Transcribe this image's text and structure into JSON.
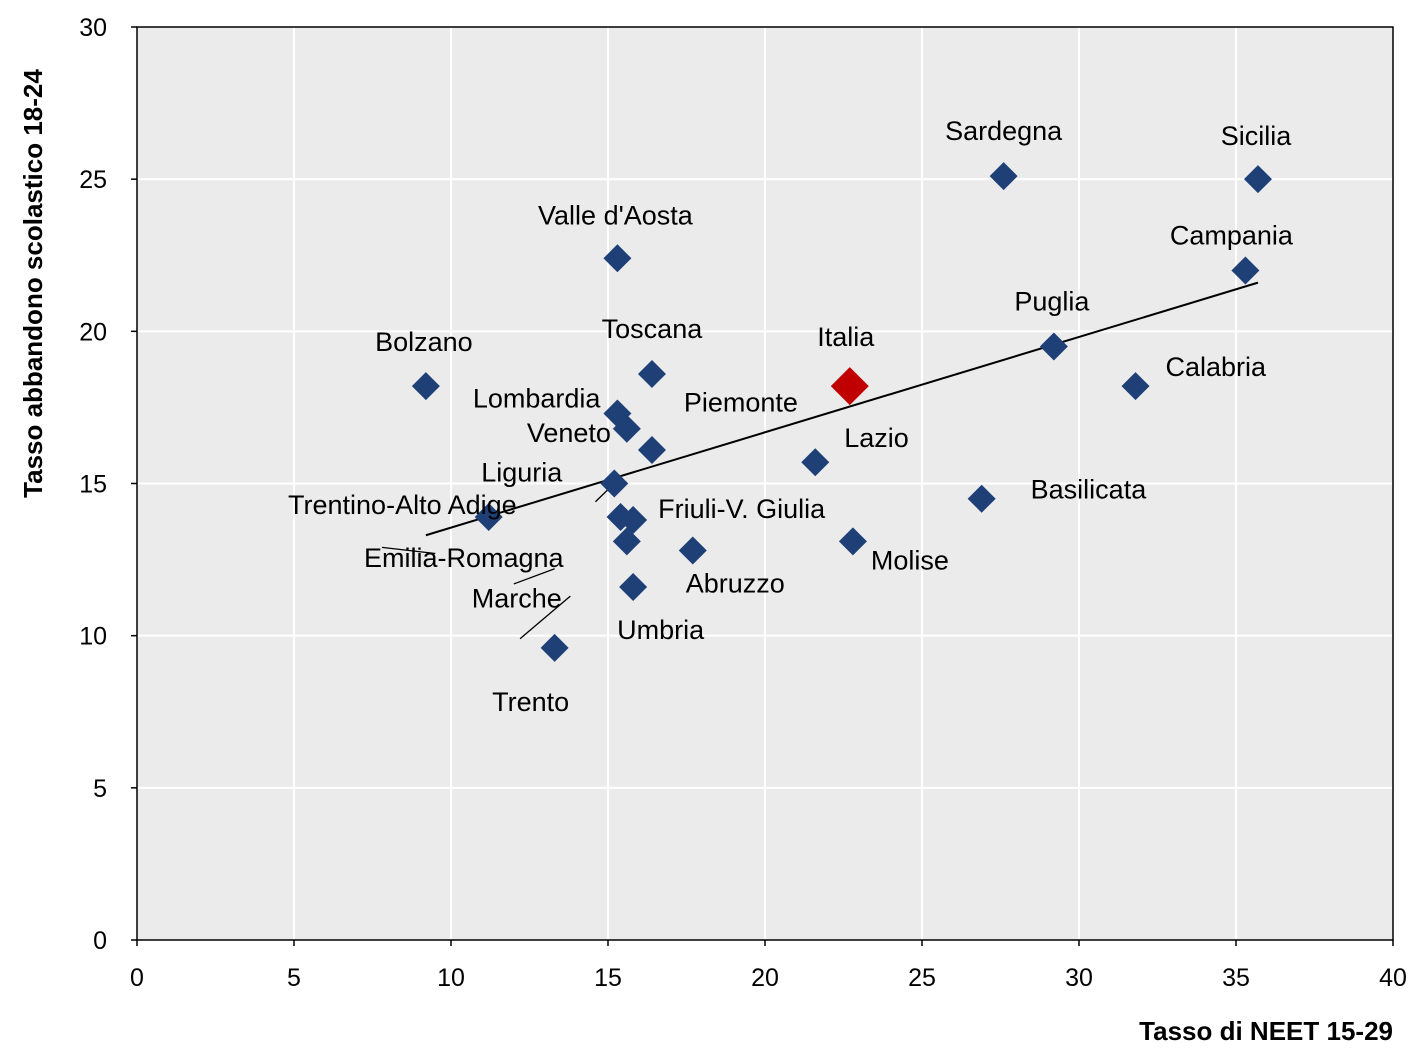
{
  "chart_data": {
    "type": "scatter",
    "title": "",
    "xlabel": "Tasso di NEET 15-29",
    "ylabel": "Tasso abbandono scolastico 18-24",
    "xlim": [
      0,
      40
    ],
    "ylim": [
      0,
      30
    ],
    "xticks": [
      "0",
      "5",
      "10",
      "15",
      "20",
      "25",
      "30",
      "35",
      "40"
    ],
    "yticks": [
      "0",
      "5",
      "10",
      "15",
      "20",
      "25",
      "30"
    ],
    "grid": "horizontal and vertical",
    "colors": {
      "regions": "#1f3f77",
      "highlight": "#c00000",
      "plot_bg": "#ebebeb",
      "trend": "#000000"
    },
    "points": [
      {
        "label": "Sicilia",
        "x": 35.7,
        "y": 25.0
      },
      {
        "label": "Sardegna",
        "x": 27.6,
        "y": 25.1
      },
      {
        "label": "Campania",
        "x": 35.3,
        "y": 22.0
      },
      {
        "label": "Valle d'Aosta",
        "x": 15.3,
        "y": 22.4
      },
      {
        "label": "Puglia",
        "x": 29.2,
        "y": 19.5
      },
      {
        "label": "Calabria",
        "x": 31.8,
        "y": 18.2
      },
      {
        "label": "Bolzano",
        "x": 9.2,
        "y": 18.2
      },
      {
        "label": "Toscana",
        "x": 16.4,
        "y": 18.6
      },
      {
        "label": "Italia",
        "x": 22.7,
        "y": 18.2,
        "highlight": true
      },
      {
        "label": "Lombardia",
        "x": 15.3,
        "y": 17.3
      },
      {
        "label": "Piemonte",
        "x": 15.6,
        "y": 16.8
      },
      {
        "label": "Veneto",
        "x": 16.4,
        "y": 16.1
      },
      {
        "label": "Lazio",
        "x": 21.6,
        "y": 15.7
      },
      {
        "label": "Liguria",
        "x": 15.2,
        "y": 15.0
      },
      {
        "label": "Basilicata",
        "x": 26.9,
        "y": 14.5
      },
      {
        "label": "Trentino-Alto Adige",
        "x": 11.2,
        "y": 13.9
      },
      {
        "label": "Friuli-V. Giulia",
        "x": 15.8,
        "y": 13.8
      },
      {
        "label": "Emilia-Romagna",
        "x": 15.4,
        "y": 13.9
      },
      {
        "label": "Marche",
        "x": 15.6,
        "y": 13.1
      },
      {
        "label": "Molise",
        "x": 22.8,
        "y": 13.1
      },
      {
        "label": "Abruzzo",
        "x": 17.7,
        "y": 12.8
      },
      {
        "label": "Umbria",
        "x": 15.8,
        "y": 11.6
      },
      {
        "label": "Trento",
        "x": 13.3,
        "y": 9.6
      }
    ],
    "trendline": [
      {
        "x": 9.2,
        "y": 13.3
      },
      {
        "x": 35.7,
        "y": 21.6
      }
    ]
  }
}
